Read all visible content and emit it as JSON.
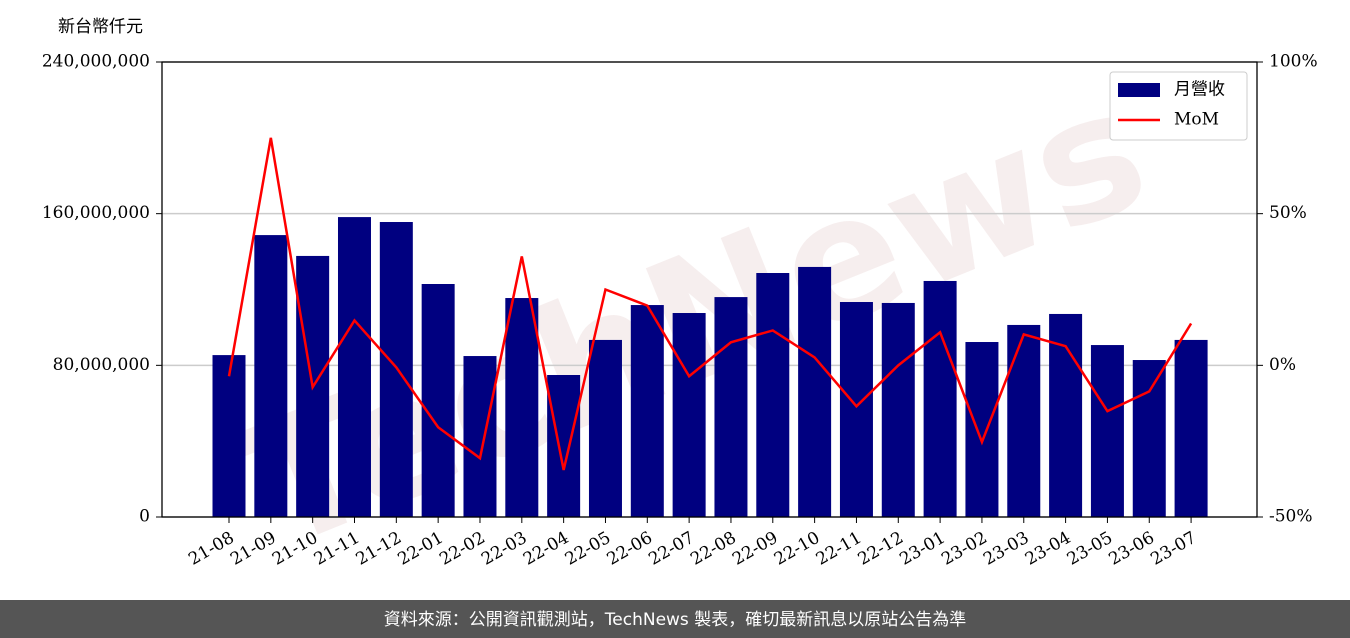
{
  "chart_data": {
    "type": "bar",
    "y_label": "新台幣仟元",
    "watermark": "TechNews",
    "categories": [
      "21-08",
      "21-09",
      "21-10",
      "21-11",
      "21-12",
      "22-01",
      "22-02",
      "22-03",
      "22-04",
      "22-05",
      "22-06",
      "22-07",
      "22-08",
      "22-09",
      "22-10",
      "22-11",
      "22-12",
      "23-01",
      "23-02",
      "23-03",
      "23-04",
      "23-05",
      "23-06",
      "23-07"
    ],
    "series": [
      {
        "name": "月營收",
        "type": "bar",
        "color": "#000080",
        "values": [
          85400000,
          148700000,
          137700000,
          158200000,
          155600000,
          122900000,
          84900000,
          115500000,
          74900000,
          93400000,
          111800000,
          107600000,
          116000000,
          128700000,
          131900000,
          113400000,
          112900000,
          124500000,
          92300000,
          101300000,
          107100000,
          90700000,
          82800000,
          93400000
        ]
      },
      {
        "name": "MoM",
        "type": "line",
        "axis": "y2",
        "color": "#ff0000",
        "values": [
          -3.6,
          75,
          -7.2,
          14.8,
          -0.7,
          -20.4,
          -30.6,
          35.9,
          -34.5,
          25,
          19.7,
          -3.6,
          7.6,
          11.5,
          2.6,
          -13.5,
          0,
          10.9,
          -25.3,
          10.2,
          6.3,
          -15.1,
          -8.6,
          13.8
        ]
      }
    ],
    "ylim": [
      0,
      240000000
    ],
    "yticks": [
      {
        "value": 0,
        "label": "0"
      },
      {
        "value": 80000000,
        "label": "80,000,000"
      },
      {
        "value": 160000000,
        "label": "160,000,000"
      },
      {
        "value": 240000000,
        "label": "240,000,000"
      }
    ],
    "y2lim": [
      -50,
      100
    ],
    "y2ticks": [
      {
        "value": -50,
        "label": "-50%"
      },
      {
        "value": 0,
        "label": "0%"
      },
      {
        "value": 50,
        "label": "50%"
      },
      {
        "value": 100,
        "label": "100%"
      }
    ],
    "grid": true,
    "legend": "upper right"
  },
  "footer": {
    "text": "資料來源：公開資訊觀測站，TechNews 製表，確切最新訊息以原站公告為準"
  }
}
